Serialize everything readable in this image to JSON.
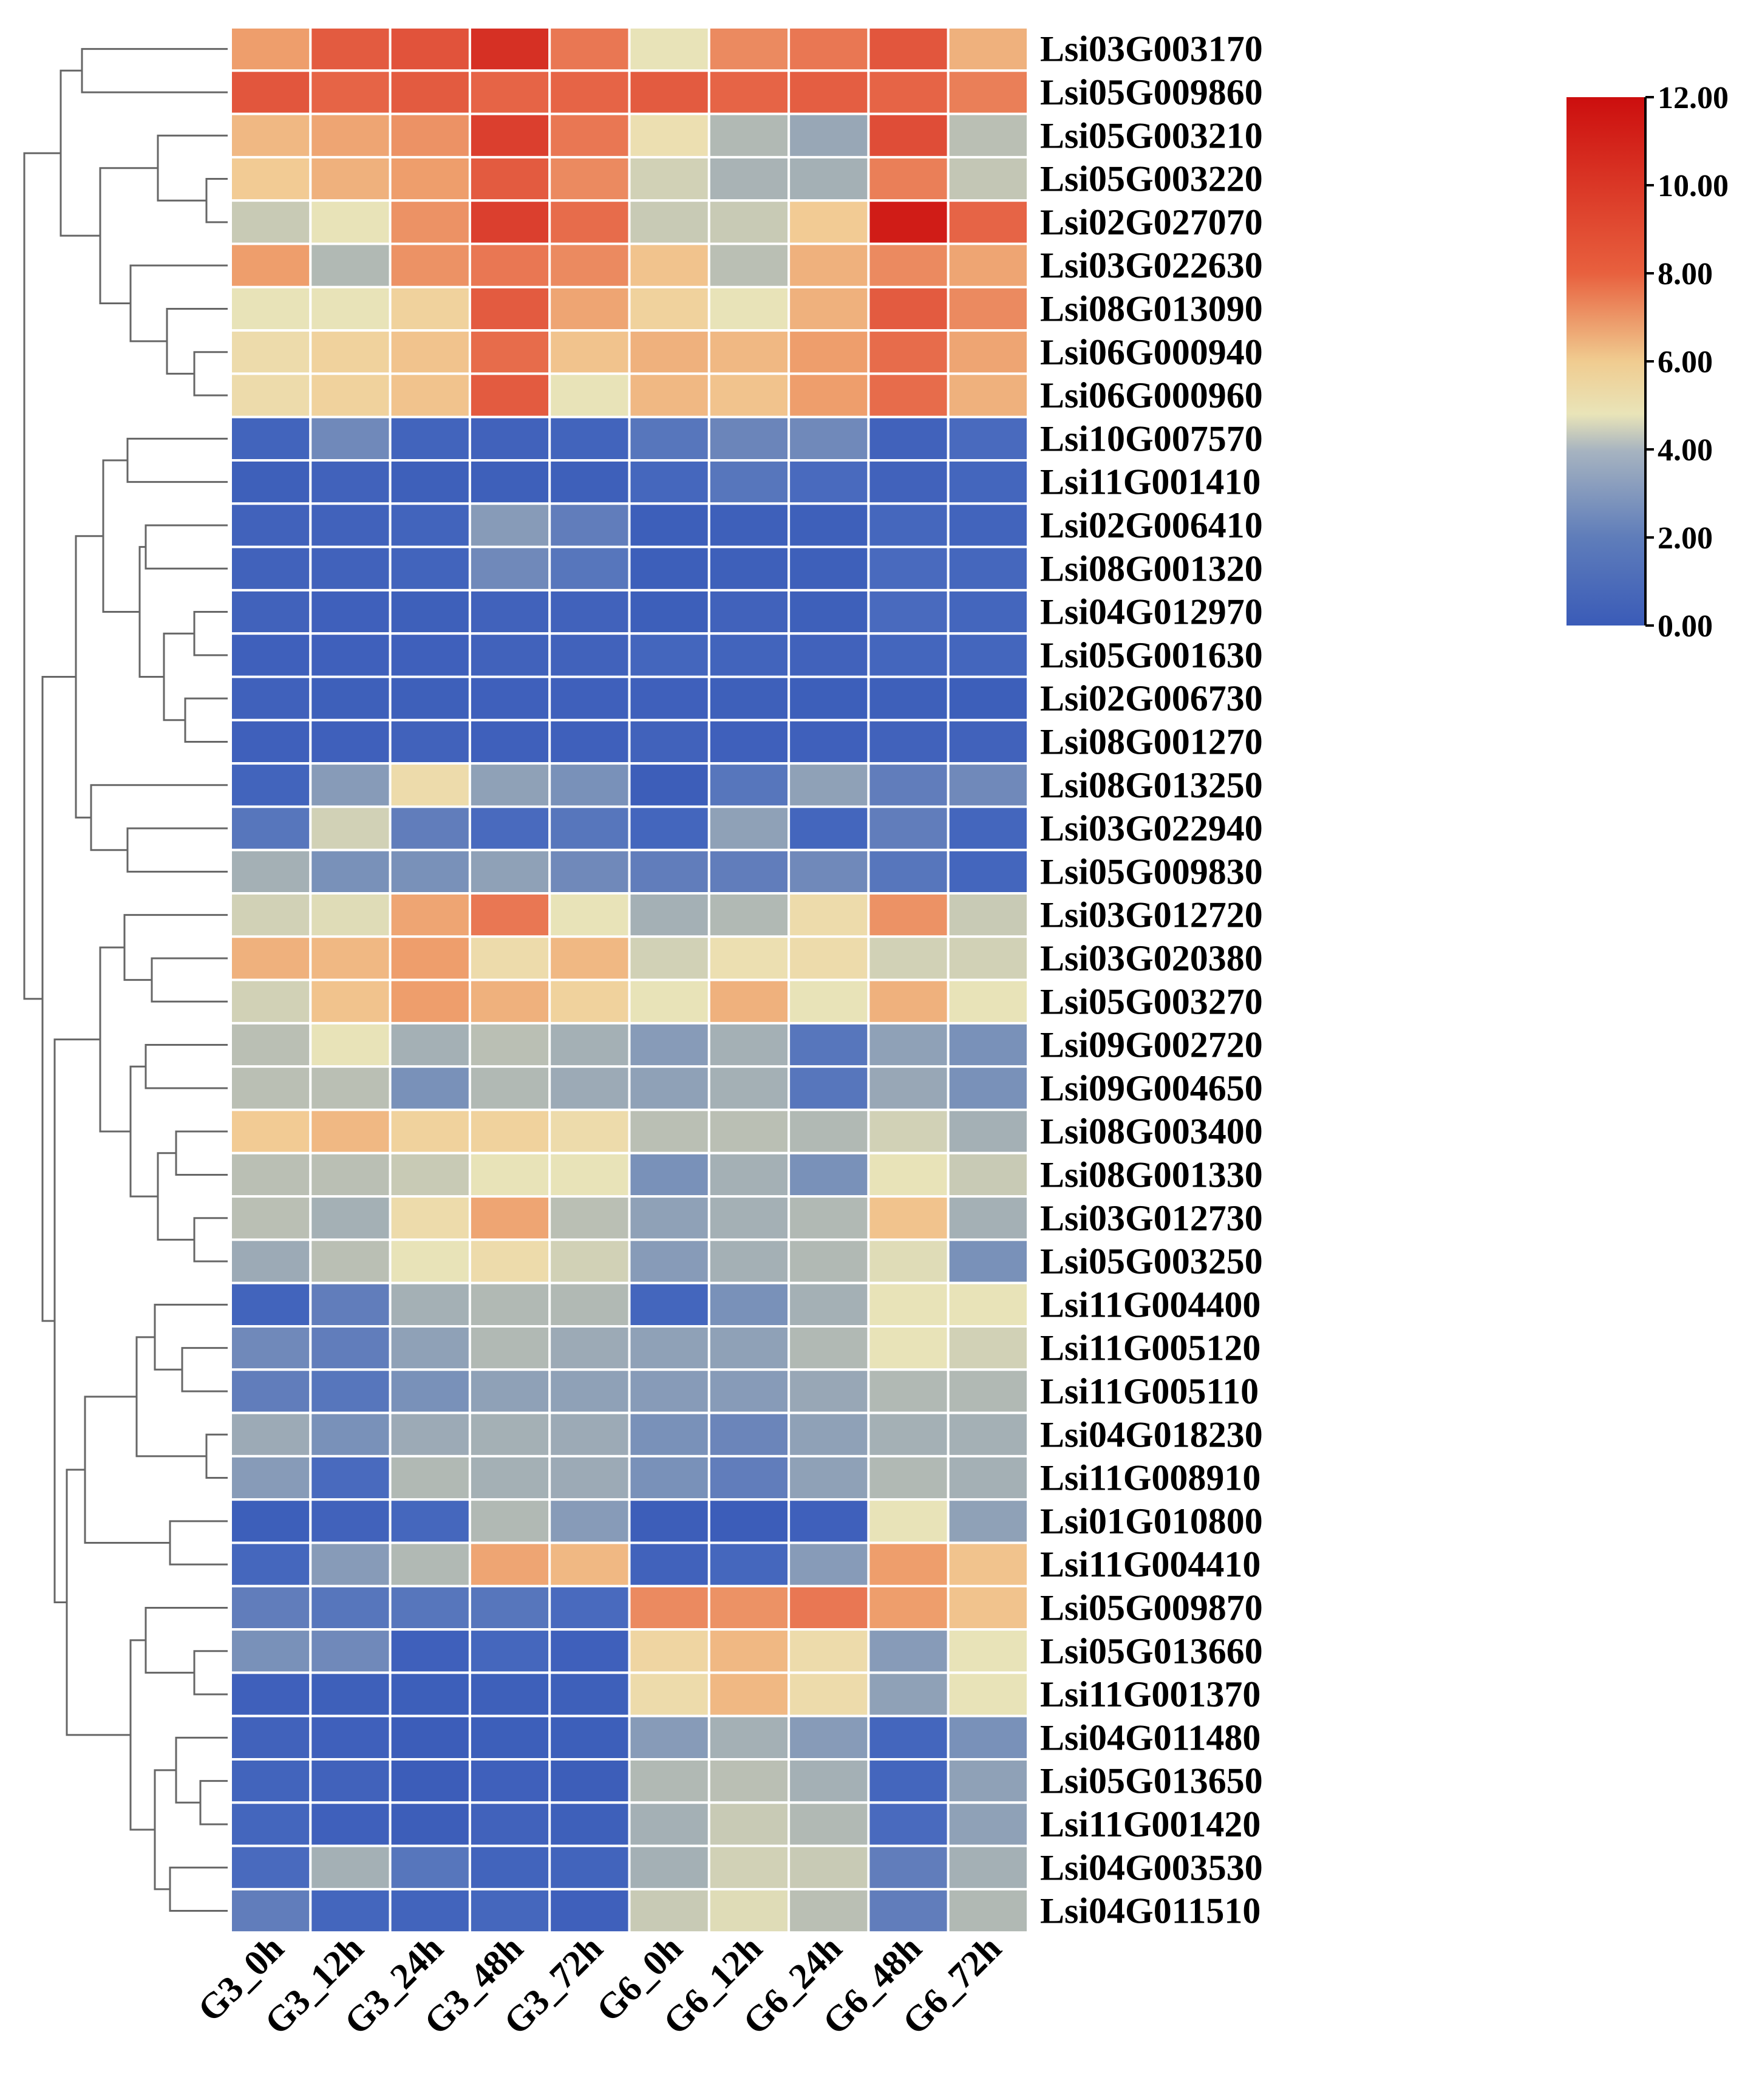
{
  "chart_data": {
    "type": "heatmap",
    "title": "",
    "columns": [
      "G3_0h",
      "G3_12h",
      "G3_24h",
      "G3_48h",
      "G3_72h",
      "G6_0h",
      "G6_12h",
      "G6_24h",
      "G6_48h",
      "G6_72h"
    ],
    "rows": [
      "Lsi03G003170",
      "Lsi05G009860",
      "Lsi05G003210",
      "Lsi05G003220",
      "Lsi02G027070",
      "Lsi03G022630",
      "Lsi08G013090",
      "Lsi06G000940",
      "Lsi06G000960",
      "Lsi10G007570",
      "Lsi11G001410",
      "Lsi02G006410",
      "Lsi08G001320",
      "Lsi04G012970",
      "Lsi05G001630",
      "Lsi02G006730",
      "Lsi08G001270",
      "Lsi08G013250",
      "Lsi03G022940",
      "Lsi05G009830",
      "Lsi03G012720",
      "Lsi03G020380",
      "Lsi05G003270",
      "Lsi09G002720",
      "Lsi09G004650",
      "Lsi08G003400",
      "Lsi08G001330",
      "Lsi03G012730",
      "Lsi05G003250",
      "Lsi11G004400",
      "Lsi11G005120",
      "Lsi11G005110",
      "Lsi04G018230",
      "Lsi11G008910",
      "Lsi01G010800",
      "Lsi11G004410",
      "Lsi05G009870",
      "Lsi05G013660",
      "Lsi11G001370",
      "Lsi04G011480",
      "Lsi05G013650",
      "Lsi11G001420",
      "Lsi04G003530",
      "Lsi04G011510"
    ],
    "values": [
      [
        7.5,
        9.3,
        9.6,
        10.8,
        8.5,
        5.0,
        8.0,
        8.5,
        9.5,
        7.0
      ],
      [
        9.5,
        9.0,
        9.3,
        9.0,
        9.0,
        9.3,
        9.0,
        9.2,
        9.0,
        8.3
      ],
      [
        6.8,
        7.3,
        7.8,
        10.3,
        8.5,
        5.3,
        3.8,
        3.2,
        9.8,
        4.0
      ],
      [
        6.3,
        7.0,
        7.5,
        9.3,
        8.0,
        4.5,
        3.6,
        3.5,
        8.3,
        4.2
      ],
      [
        4.3,
        5.0,
        7.8,
        10.3,
        8.8,
        4.3,
        4.3,
        6.3,
        11.5,
        9.0
      ],
      [
        7.5,
        3.8,
        7.8,
        8.5,
        8.0,
        6.5,
        4.0,
        7.0,
        8.0,
        7.3
      ],
      [
        5.0,
        5.0,
        6.0,
        9.3,
        7.3,
        6.0,
        5.0,
        7.0,
        9.3,
        8.0
      ],
      [
        5.5,
        6.0,
        6.5,
        8.8,
        6.5,
        7.0,
        6.8,
        7.5,
        8.8,
        7.3
      ],
      [
        5.5,
        6.0,
        6.5,
        9.3,
        5.0,
        6.8,
        6.5,
        7.5,
        8.8,
        7.0
      ],
      [
        1.0,
        2.3,
        1.0,
        0.8,
        1.0,
        1.8,
        2.2,
        2.3,
        0.8,
        1.5
      ],
      [
        0.5,
        0.8,
        0.5,
        0.5,
        0.5,
        1.3,
        1.8,
        1.5,
        0.8,
        1.2
      ],
      [
        0.8,
        0.8,
        1.0,
        2.8,
        2.0,
        0.4,
        0.5,
        0.5,
        1.3,
        1.0
      ],
      [
        0.8,
        0.8,
        1.0,
        2.3,
        1.8,
        0.4,
        0.5,
        0.5,
        1.5,
        1.3
      ],
      [
        0.8,
        0.6,
        0.5,
        0.8,
        0.8,
        0.4,
        0.8,
        0.5,
        1.5,
        1.2
      ],
      [
        0.6,
        0.6,
        0.6,
        0.8,
        0.8,
        1.2,
        1.0,
        0.8,
        1.2,
        1.2
      ],
      [
        0.7,
        0.5,
        0.5,
        0.6,
        0.6,
        0.6,
        0.5,
        0.4,
        0.5,
        0.4
      ],
      [
        0.6,
        0.6,
        0.8,
        0.6,
        0.6,
        0.8,
        0.6,
        0.6,
        0.8,
        0.8
      ],
      [
        1.0,
        2.8,
        5.5,
        3.0,
        2.5,
        0.3,
        1.8,
        3.0,
        2.0,
        2.3
      ],
      [
        1.8,
        4.5,
        2.0,
        1.5,
        1.8,
        1.2,
        3.0,
        1.2,
        2.0,
        1.2
      ],
      [
        3.5,
        2.5,
        2.5,
        3.0,
        2.3,
        2.0,
        2.0,
        2.3,
        1.8,
        1.2
      ],
      [
        4.5,
        4.8,
        7.3,
        8.5,
        5.0,
        3.5,
        3.8,
        5.5,
        7.8,
        4.3
      ],
      [
        7.0,
        6.8,
        7.5,
        5.5,
        6.8,
        4.5,
        5.3,
        5.5,
        4.5,
        4.5
      ],
      [
        4.5,
        6.5,
        7.5,
        7.0,
        6.0,
        5.0,
        7.0,
        5.0,
        7.0,
        5.0
      ],
      [
        4.0,
        5.0,
        3.5,
        4.0,
        3.5,
        2.8,
        3.5,
        1.8,
        3.0,
        2.5
      ],
      [
        4.0,
        4.0,
        2.5,
        3.8,
        3.3,
        3.0,
        3.5,
        1.8,
        3.2,
        2.5
      ],
      [
        6.3,
        6.8,
        6.0,
        6.0,
        5.5,
        4.0,
        4.0,
        3.8,
        4.5,
        3.5
      ],
      [
        4.0,
        4.0,
        4.3,
        5.0,
        5.0,
        2.5,
        3.5,
        2.5,
        5.0,
        4.3
      ],
      [
        4.0,
        3.5,
        5.5,
        7.3,
        4.0,
        3.0,
        3.5,
        3.8,
        6.5,
        3.5
      ],
      [
        3.3,
        4.0,
        5.0,
        5.5,
        4.5,
        2.8,
        3.5,
        3.8,
        4.8,
        2.5
      ],
      [
        1.0,
        2.0,
        3.5,
        3.8,
        3.8,
        1.2,
        2.5,
        3.5,
        5.0,
        5.0
      ],
      [
        2.3,
        2.0,
        3.0,
        3.8,
        3.3,
        3.0,
        3.0,
        3.8,
        5.0,
        4.5
      ],
      [
        2.0,
        1.8,
        2.5,
        3.0,
        3.0,
        2.8,
        2.8,
        3.2,
        3.8,
        3.8
      ],
      [
        3.3,
        2.5,
        3.3,
        3.5,
        3.3,
        2.5,
        2.2,
        3.0,
        3.5,
        3.5
      ],
      [
        2.8,
        1.5,
        3.8,
        3.5,
        3.3,
        2.5,
        2.0,
        3.0,
        3.8,
        3.5
      ],
      [
        0.4,
        0.8,
        1.3,
        3.8,
        2.8,
        0.3,
        0.2,
        0.6,
        5.0,
        3.0
      ],
      [
        1.3,
        2.8,
        3.8,
        7.3,
        6.8,
        0.8,
        1.3,
        2.8,
        7.5,
        6.5
      ],
      [
        2.0,
        1.8,
        1.8,
        1.8,
        1.5,
        8.0,
        7.8,
        8.5,
        7.5,
        6.5
      ],
      [
        2.5,
        2.3,
        0.6,
        1.3,
        0.6,
        5.8,
        6.8,
        5.5,
        2.8,
        5.0
      ],
      [
        0.6,
        0.5,
        0.4,
        0.5,
        0.5,
        5.5,
        6.8,
        5.5,
        3.0,
        5.0
      ],
      [
        0.8,
        0.6,
        0.2,
        0.4,
        0.4,
        2.8,
        3.5,
        2.8,
        1.2,
        2.5
      ],
      [
        1.0,
        0.8,
        0.2,
        0.6,
        0.3,
        3.8,
        4.0,
        3.5,
        1.2,
        3.0
      ],
      [
        1.2,
        0.6,
        0.3,
        0.8,
        0.5,
        3.5,
        4.3,
        3.8,
        1.5,
        3.0
      ],
      [
        1.5,
        3.5,
        1.8,
        1.0,
        1.0,
        3.5,
        4.5,
        4.3,
        2.0,
        3.5
      ],
      [
        2.0,
        1.2,
        1.0,
        1.3,
        0.6,
        4.3,
        4.8,
        4.0,
        2.0,
        3.8
      ]
    ],
    "colorbar": {
      "min": 0,
      "max": 12,
      "ticks": [
        "0.00",
        "2.00",
        "4.00",
        "6.00",
        "8.00",
        "10.00",
        "12.00"
      ],
      "colors": [
        "#3a5bb8",
        "#8fa6c4",
        "#e9e4b8",
        "#f0b072",
        "#e8603e",
        "#cc0e0e"
      ]
    },
    "dendrogram": "rows clustered; tree drawn on left side"
  }
}
